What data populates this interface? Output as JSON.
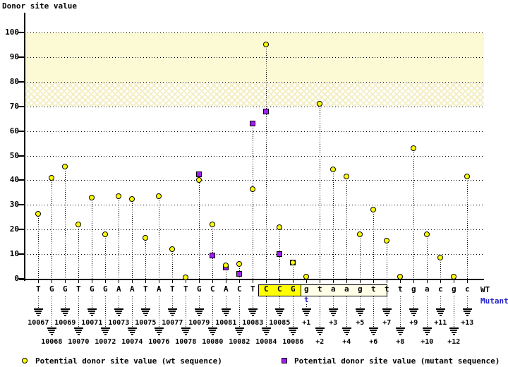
{
  "title": "Donor site value",
  "colors": {
    "wt_marker": "#ffff00",
    "mutant_marker": "#a020f0",
    "band_solid": "#fbfad5",
    "band_hatch_line": "#f3efc4",
    "highlight_exon_bg": "#ffff00",
    "highlight_intron_bg": "#fffee6",
    "mutant_text": "#2222cc",
    "axis": "#000000"
  },
  "row_labels": {
    "wt": "WT",
    "mutant": "Mutant"
  },
  "legend": {
    "wt": "Potential donor site value (wt sequence)",
    "mutant": "Potential donor site value (mutant sequence)"
  },
  "chart_data": {
    "type": "scatter",
    "title": "Donor site value",
    "ylabel": "Donor site value",
    "ylim": [
      0,
      100
    ],
    "y_ticks": [
      0,
      10,
      20,
      30,
      40,
      50,
      60,
      70,
      80,
      90,
      100
    ],
    "grid": "dotted-horizontal",
    "bands": [
      {
        "from": 80,
        "to": 100,
        "style": "solid"
      },
      {
        "from": 70,
        "to": 80,
        "style": "hatch"
      }
    ],
    "sequence_wt": "TGGTGGAATATTGCACTCCGgtaagtttgacgc",
    "mutation": {
      "position": "+1",
      "wt_base": "g",
      "mutant_base": "t"
    },
    "highlight_box": {
      "exon_part": "CCG",
      "intron_part": "gtaagt",
      "covers": [
        "10084",
        "10085",
        "10086",
        "+1",
        "+2",
        "+3",
        "+4",
        "+5",
        "+6"
      ]
    },
    "series": [
      {
        "name": "Potential donor site value (wt sequence)",
        "marker": "circle",
        "color": "#ffff00"
      },
      {
        "name": "Potential donor site value (mutant sequence)",
        "marker": "square",
        "color": "#a020f0"
      }
    ],
    "points": [
      {
        "base": "T",
        "pos": "10067",
        "wt": 26.5,
        "mut": null
      },
      {
        "base": "G",
        "pos": "10068",
        "wt": 41,
        "mut": null
      },
      {
        "base": "G",
        "pos": "10069",
        "wt": 45.5,
        "mut": null
      },
      {
        "base": "T",
        "pos": "10070",
        "wt": 22,
        "mut": null
      },
      {
        "base": "G",
        "pos": "10071",
        "wt": 33,
        "mut": null
      },
      {
        "base": "G",
        "pos": "10072",
        "wt": 18,
        "mut": null
      },
      {
        "base": "A",
        "pos": "10073",
        "wt": 33.5,
        "mut": null
      },
      {
        "base": "A",
        "pos": "10074",
        "wt": 32.5,
        "mut": null
      },
      {
        "base": "T",
        "pos": "10075",
        "wt": 16.5,
        "mut": null
      },
      {
        "base": "A",
        "pos": "10076",
        "wt": 33.5,
        "mut": null
      },
      {
        "base": "T",
        "pos": "10077",
        "wt": 12,
        "mut": null
      },
      {
        "base": "T",
        "pos": "10078",
        "wt": 0.5,
        "mut": null
      },
      {
        "base": "G",
        "pos": "10079",
        "wt": 40,
        "mut": 42.5
      },
      {
        "base": "C",
        "pos": "10080",
        "wt": 22,
        "mut": 9.5
      },
      {
        "base": "A",
        "pos": "10081",
        "wt": 5.5,
        "mut": 4.5
      },
      {
        "base": "C",
        "pos": "10082",
        "wt": 6,
        "mut": 2
      },
      {
        "base": "T",
        "pos": "10083",
        "wt": 36.5,
        "mut": 63
      },
      {
        "base": "C",
        "pos": "10084",
        "wt": 95,
        "mut": 68
      },
      {
        "base": "C",
        "pos": "10085",
        "wt": 21,
        "mut": 10
      },
      {
        "base": "G",
        "pos": "10086",
        "wt": 6.5,
        "mut": 6.5,
        "overlap": true
      },
      {
        "base": "g",
        "pos": "+1",
        "wt": 1,
        "mut": null,
        "mutant_base": "t"
      },
      {
        "base": "t",
        "pos": "+2",
        "wt": 71,
        "mut": null
      },
      {
        "base": "a",
        "pos": "+3",
        "wt": 44.5,
        "mut": null
      },
      {
        "base": "a",
        "pos": "+4",
        "wt": 41.5,
        "mut": null
      },
      {
        "base": "g",
        "pos": "+5",
        "wt": 18,
        "mut": null
      },
      {
        "base": "t",
        "pos": "+6",
        "wt": 28,
        "mut": null
      },
      {
        "base": "t",
        "pos": "+7",
        "wt": 15.5,
        "mut": null
      },
      {
        "base": "t",
        "pos": "+8",
        "wt": 1,
        "mut": null
      },
      {
        "base": "g",
        "pos": "+9",
        "wt": 53,
        "mut": null
      },
      {
        "base": "a",
        "pos": "+10",
        "wt": 18,
        "mut": null
      },
      {
        "base": "c",
        "pos": "+11",
        "wt": 8.5,
        "mut": null
      },
      {
        "base": "g",
        "pos": "+12",
        "wt": 1,
        "mut": null
      },
      {
        "base": "c",
        "pos": "+13",
        "wt": 41.5,
        "mut": null
      }
    ]
  }
}
